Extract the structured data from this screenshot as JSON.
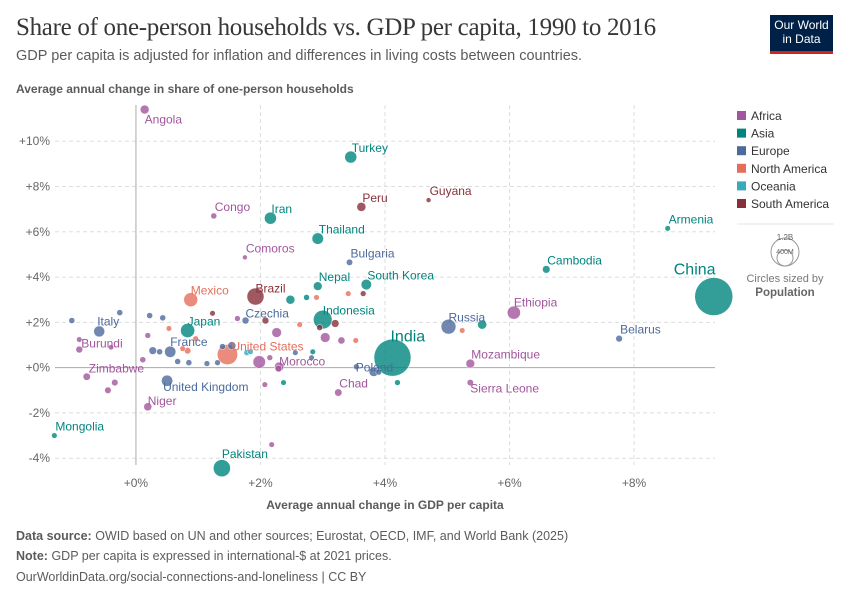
{
  "header": {
    "title": "Share of one-person households vs. GDP per capita, 1990 to 2016",
    "subtitle": "GDP per capita is adjusted for inflation and differences in living costs between countries.",
    "logo": "Our World in Data"
  },
  "footer": {
    "source_label": "Data source:",
    "source": "OWID based on UN and other sources; Eurostat, OECD, IMF, and World Bank (2025)",
    "note_label": "Note:",
    "note": "GDP per capita is expressed in international-$ at 2021 prices.",
    "url": "OurWorldinData.org/social-connections-and-loneliness | CC BY"
  },
  "chart_data": {
    "type": "scatter",
    "title": "Share of one-person households vs. GDP per capita, 1990 to 2016",
    "xlabel": "Average annual change in GDP per capita",
    "ylabel": "Average annual change in share of one-person households",
    "xlim": [
      -1.3,
      9.3
    ],
    "ylim": [
      -4.3,
      11.6
    ],
    "xticks": [
      {
        "v": 0,
        "label": "+0%"
      },
      {
        "v": 2,
        "label": "+2%"
      },
      {
        "v": 4,
        "label": "+4%"
      },
      {
        "v": 6,
        "label": "+6%"
      },
      {
        "v": 8,
        "label": "+8%"
      }
    ],
    "yticks": [
      {
        "v": -4,
        "label": "-4%"
      },
      {
        "v": -2,
        "label": "-2%"
      },
      {
        "v": 0,
        "label": "+0%"
      },
      {
        "v": 2,
        "label": "+2%"
      },
      {
        "v": 4,
        "label": "+4%"
      },
      {
        "v": 6,
        "label": "+6%"
      },
      {
        "v": 8,
        "label": "+8%"
      },
      {
        "v": 10,
        "label": "+10%"
      }
    ],
    "grid": true,
    "legend": {
      "placement": "right",
      "items": [
        {
          "name": "Africa",
          "color": "#a2559c"
        },
        {
          "name": "Asia",
          "color": "#00847e"
        },
        {
          "name": "Europe",
          "color": "#4c6a9c"
        },
        {
          "name": "North America",
          "color": "#e56e5a"
        },
        {
          "name": "Oceania",
          "color": "#38aaba"
        },
        {
          "name": "South America",
          "color": "#883039"
        }
      ],
      "size_legend": {
        "big": "1.2B",
        "small": "400M",
        "caption": "Circles sized by",
        "variable": "Population"
      }
    },
    "points": [
      {
        "name": "Angola",
        "region": "Africa",
        "x": 0.14,
        "y": 11.4,
        "pop": 29
      },
      {
        "name": "Turkey",
        "region": "Asia",
        "x": 3.45,
        "y": 9.3,
        "pop": 79
      },
      {
        "name": "Peru",
        "region": "South America",
        "x": 3.62,
        "y": 7.1,
        "pop": 31
      },
      {
        "name": "Guyana",
        "region": "South America",
        "x": 4.7,
        "y": 7.4,
        "pop": 1
      },
      {
        "name": "Congo",
        "region": "Africa",
        "x": 1.25,
        "y": 6.7,
        "pop": 5
      },
      {
        "name": "Iran",
        "region": "Asia",
        "x": 2.16,
        "y": 6.6,
        "pop": 80
      },
      {
        "name": "Thailand",
        "region": "Asia",
        "x": 2.92,
        "y": 5.7,
        "pop": 69
      },
      {
        "name": "Comoros",
        "region": "Africa",
        "x": 1.75,
        "y": 4.87,
        "pop": 1
      },
      {
        "name": "Bulgaria",
        "region": "Europe",
        "x": 3.43,
        "y": 4.65,
        "pop": 7
      },
      {
        "name": "Armenia",
        "region": "Asia",
        "x": 8.54,
        "y": 6.15,
        "pop": 3
      },
      {
        "name": "Cambodia",
        "region": "Asia",
        "x": 6.59,
        "y": 4.34,
        "pop": 16
      },
      {
        "name": "Nepal",
        "region": "Asia",
        "x": 2.92,
        "y": 3.6,
        "pop": 28
      },
      {
        "name": "South Korea",
        "region": "Asia",
        "x": 3.7,
        "y": 3.67,
        "pop": 51
      },
      {
        "name": "Brazil",
        "region": "South America",
        "x": 1.92,
        "y": 3.14,
        "pop": 206
      },
      {
        "name": "Mexico",
        "region": "North America",
        "x": 0.88,
        "y": 3.0,
        "pop": 122
      },
      {
        "name": "China",
        "region": "Asia",
        "x": 9.28,
        "y": 3.14,
        "pop": 1400
      },
      {
        "name": "Ethiopia",
        "region": "Africa",
        "x": 6.07,
        "y": 2.43,
        "pop": 103
      },
      {
        "name": "Russia",
        "region": "Europe",
        "x": 5.02,
        "y": 1.81,
        "pop": 145
      },
      {
        "name": "Indonesia",
        "region": "Asia",
        "x": 3.0,
        "y": 2.12,
        "pop": 261
      },
      {
        "name": "Japan",
        "region": "Asia",
        "x": 0.83,
        "y": 1.64,
        "pop": 127
      },
      {
        "name": "Italy",
        "region": "Europe",
        "x": -0.59,
        "y": 1.6,
        "pop": 60
      },
      {
        "name": "Czechia",
        "region": "Europe",
        "x": 1.76,
        "y": 2.08,
        "pop": 11
      },
      {
        "name": "Belarus",
        "region": "Europe",
        "x": 7.76,
        "y": 1.28,
        "pop": 9
      },
      {
        "name": "India",
        "region": "Asia",
        "x": 4.12,
        "y": 0.44,
        "pop": 1320
      },
      {
        "name": "Poland",
        "region": "Europe",
        "x": 3.82,
        "y": -0.18,
        "pop": 38
      },
      {
        "name": "United States",
        "region": "North America",
        "x": 1.47,
        "y": 0.58,
        "pop": 323
      },
      {
        "name": "France",
        "region": "Europe",
        "x": 0.55,
        "y": 0.7,
        "pop": 66
      },
      {
        "name": "Burundi",
        "region": "Africa",
        "x": -0.91,
        "y": 0.8,
        "pop": 10
      },
      {
        "name": "Morocco",
        "region": "Africa",
        "x": 2.3,
        "y": 0.04,
        "pop": 35
      },
      {
        "name": "Mozambique",
        "region": "Africa",
        "x": 5.37,
        "y": 0.18,
        "pop": 28
      },
      {
        "name": "Zimbabwe",
        "region": "Africa",
        "x": -0.79,
        "y": -0.4,
        "pop": 14
      },
      {
        "name": "United Kingdom",
        "region": "Europe",
        "x": 0.5,
        "y": -0.58,
        "pop": 65
      },
      {
        "name": "Chad",
        "region": "Africa",
        "x": 3.25,
        "y": -1.1,
        "pop": 14
      },
      {
        "name": "Sierra Leone",
        "region": "Africa",
        "x": 5.37,
        "y": -0.66,
        "pop": 7
      },
      {
        "name": "Niger",
        "region": "Africa",
        "x": 0.19,
        "y": -1.73,
        "pop": 20
      },
      {
        "name": "Mongolia",
        "region": "Asia",
        "x": -1.31,
        "y": -3.0,
        "pop": 3
      },
      {
        "name": "Pakistan",
        "region": "Asia",
        "x": 1.38,
        "y": -4.44,
        "pop": 208
      },
      {
        "region": "Europe",
        "x": -1.03,
        "y": 2.08,
        "pop": 5
      },
      {
        "region": "Europe",
        "x": -0.26,
        "y": 2.43,
        "pop": 5
      },
      {
        "region": "Europe",
        "x": 0.22,
        "y": 2.3,
        "pop": 5
      },
      {
        "region": "Europe",
        "x": 0.43,
        "y": 2.2,
        "pop": 5
      },
      {
        "region": "Europe",
        "x": 0.27,
        "y": 0.75,
        "pop": 17
      },
      {
        "region": "Europe",
        "x": 0.38,
        "y": 0.7,
        "pop": 5
      },
      {
        "region": "Europe",
        "x": 0.67,
        "y": 0.27,
        "pop": 5
      },
      {
        "region": "Europe",
        "x": 0.85,
        "y": 0.22,
        "pop": 5
      },
      {
        "region": "Europe",
        "x": 1.14,
        "y": 0.18,
        "pop": 4
      },
      {
        "region": "Europe",
        "x": 1.31,
        "y": 0.22,
        "pop": 4
      },
      {
        "region": "Europe",
        "x": 1.39,
        "y": 0.93,
        "pop": 5
      },
      {
        "region": "Europe",
        "x": 1.54,
        "y": 0.97,
        "pop": 20
      },
      {
        "region": "Europe",
        "x": 3.54,
        "y": 0.04,
        "pop": 4
      },
      {
        "region": "Europe",
        "x": 2.82,
        "y": 0.44,
        "pop": 3
      },
      {
        "region": "Europe",
        "x": 2.56,
        "y": 0.66,
        "pop": 3
      },
      {
        "region": "Europe",
        "x": 3.9,
        "y": -0.2,
        "pop": 4
      },
      {
        "region": "Africa",
        "x": -0.91,
        "y": 1.24,
        "pop": 3
      },
      {
        "region": "Africa",
        "x": -0.45,
        "y": -1.0,
        "pop": 8
      },
      {
        "region": "Africa",
        "x": -0.34,
        "y": -0.66,
        "pop": 8
      },
      {
        "region": "Africa",
        "x": 0.11,
        "y": 0.35,
        "pop": 5
      },
      {
        "region": "Africa",
        "x": 0.19,
        "y": 1.42,
        "pop": 4
      },
      {
        "region": "Africa",
        "x": 1.63,
        "y": 2.17,
        "pop": 4
      },
      {
        "region": "Africa",
        "x": 2.15,
        "y": 0.44,
        "pop": 4
      },
      {
        "region": "Africa",
        "x": 2.07,
        "y": -0.75,
        "pop": 3
      },
      {
        "region": "Africa",
        "x": 2.18,
        "y": -3.4,
        "pop": 3
      },
      {
        "region": "Africa",
        "x": 2.29,
        "y": -0.04,
        "pop": 10
      },
      {
        "region": "Africa",
        "x": 3.04,
        "y": 1.33,
        "pop": 40
      },
      {
        "region": "Africa",
        "x": 3.3,
        "y": 1.2,
        "pop": 12
      },
      {
        "region": "Africa",
        "x": 2.26,
        "y": 1.55,
        "pop": 40
      },
      {
        "region": "Africa",
        "x": 1.98,
        "y": 0.25,
        "pop": 90
      },
      {
        "region": "Africa",
        "x": -0.4,
        "y": 0.9,
        "pop": 2
      },
      {
        "region": "Asia",
        "x": 2.74,
        "y": 3.1,
        "pop": 5
      },
      {
        "region": "Asia",
        "x": 2.48,
        "y": 3.0,
        "pop": 30
      },
      {
        "region": "Asia",
        "x": 2.37,
        "y": -0.66,
        "pop": 3
      },
      {
        "region": "Asia",
        "x": 2.84,
        "y": 0.7,
        "pop": 3
      },
      {
        "region": "Asia",
        "x": 4.2,
        "y": -0.66,
        "pop": 4
      },
      {
        "region": "Asia",
        "x": 5.56,
        "y": 1.9,
        "pop": 32
      },
      {
        "region": "Oceania",
        "x": 1.78,
        "y": 0.66,
        "pop": 4
      },
      {
        "region": "Oceania",
        "x": 1.84,
        "y": 0.7,
        "pop": 3
      },
      {
        "region": "North America",
        "x": 0.53,
        "y": 1.73,
        "pop": 3
      },
      {
        "region": "North America",
        "x": 0.75,
        "y": 0.84,
        "pop": 3
      },
      {
        "region": "North America",
        "x": 0.96,
        "y": 1.28,
        "pop": 3
      },
      {
        "region": "North America",
        "x": 2.63,
        "y": 1.9,
        "pop": 3
      },
      {
        "region": "North America",
        "x": 2.9,
        "y": 3.1,
        "pop": 3
      },
      {
        "region": "North America",
        "x": 3.41,
        "y": 3.27,
        "pop": 3
      },
      {
        "region": "North America",
        "x": 3.53,
        "y": 1.2,
        "pop": 3
      },
      {
        "region": "North America",
        "x": 5.24,
        "y": 1.64,
        "pop": 3
      },
      {
        "region": "North America",
        "x": 0.83,
        "y": 0.75,
        "pop": 8
      },
      {
        "region": "South America",
        "x": 1.23,
        "y": 2.4,
        "pop": 3
      },
      {
        "region": "South America",
        "x": 2.08,
        "y": 2.08,
        "pop": 10
      },
      {
        "region": "South America",
        "x": 3.2,
        "y": 1.95,
        "pop": 17
      },
      {
        "region": "South America",
        "x": 3.65,
        "y": 3.27,
        "pop": 4
      },
      {
        "region": "South America",
        "x": 2.95,
        "y": 1.77,
        "pop": 5
      }
    ]
  }
}
